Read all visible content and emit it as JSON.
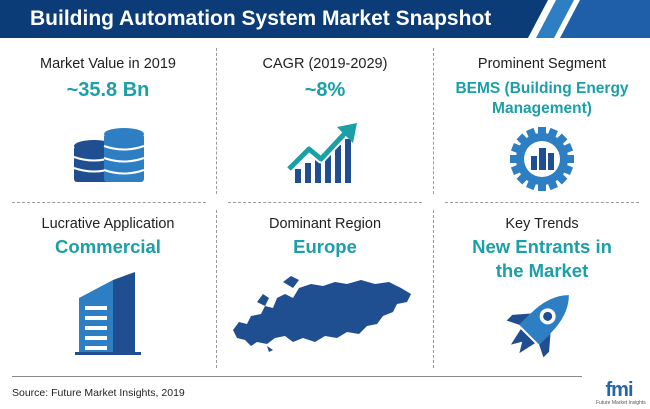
{
  "header": {
    "title": "Building Automation System Market Snapshot"
  },
  "colors": {
    "banner": "#0b3c78",
    "accent": "#1aa0a6",
    "icon_navy": "#1f4e91",
    "icon_blue": "#2d7ec2"
  },
  "cells": [
    {
      "label": "Market Value in 2019",
      "value": "~35.8 Bn",
      "icon": "coin-stack-icon"
    },
    {
      "label": "CAGR (2019-2029)",
      "value": "~8%",
      "icon": "growth-chart-icon"
    },
    {
      "label": "Prominent Segment",
      "value": "BEMS (Building Energy Management)",
      "icon": "gear-building-icon"
    },
    {
      "label": "Lucrative Application",
      "value": "Commercial",
      "icon": "office-building-icon"
    },
    {
      "label": "Dominant Region",
      "value": "Europe",
      "icon": "europe-map-icon"
    },
    {
      "label": "Key Trends",
      "value": "New Entrants in the Market",
      "icon": "rocket-icon"
    }
  ],
  "footer": {
    "source": "Source: Future Market Insights, 2019"
  },
  "logo": {
    "text": "fmi",
    "subtext": "Future Market Insights"
  }
}
